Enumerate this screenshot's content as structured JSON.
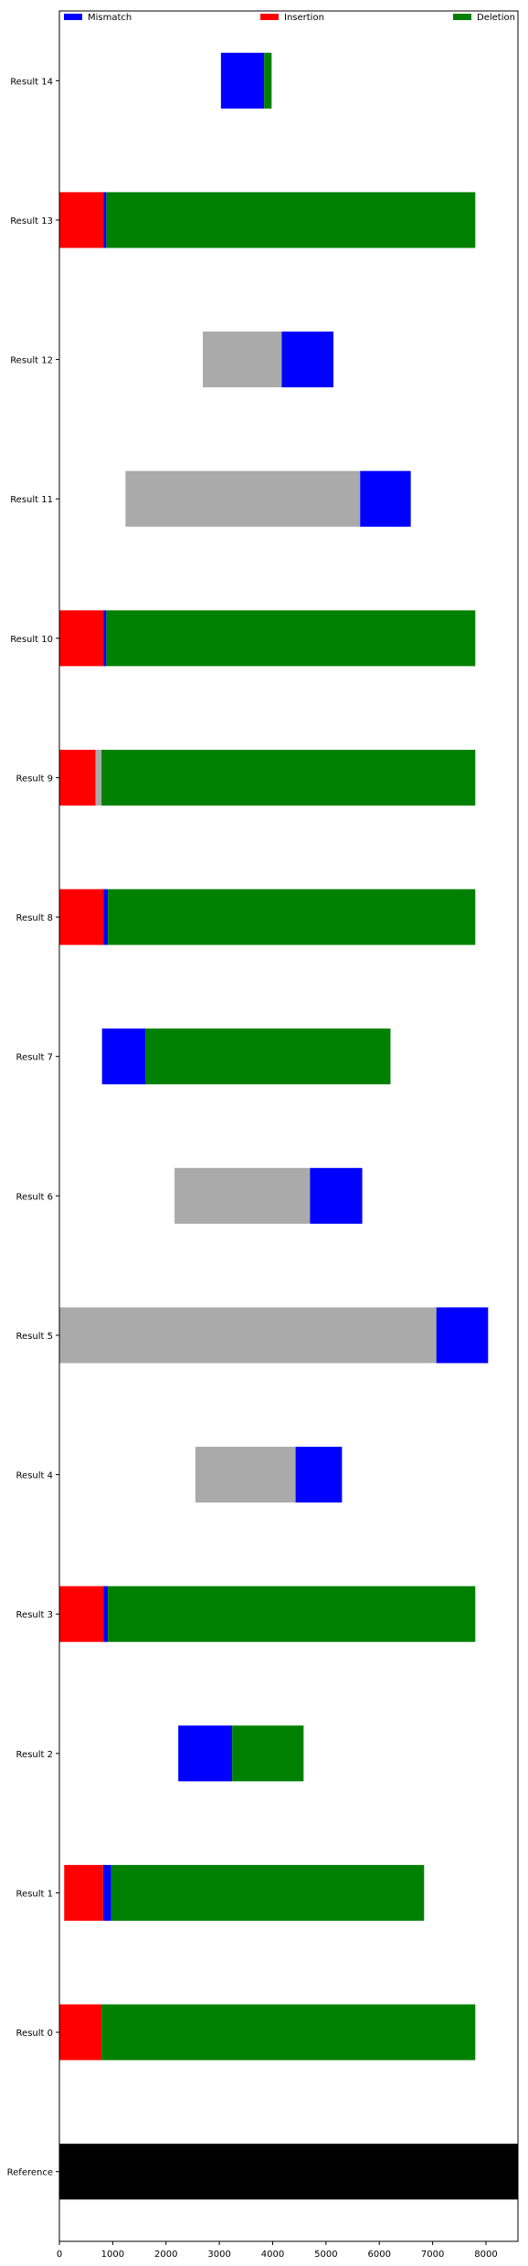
{
  "chart_data": {
    "type": "bar",
    "orientation": "horizontal-stacked",
    "title": "",
    "xlabel": "",
    "ylabel": "",
    "xlim": [
      0,
      8600
    ],
    "xticks": [
      0,
      1000,
      2000,
      3000,
      4000,
      5000,
      6000,
      7000,
      8000
    ],
    "grid": false,
    "legend": {
      "placement": "top",
      "entries": [
        {
          "label": "Mismatch",
          "color": "#0000ff"
        },
        {
          "label": "Insertion",
          "color": "#ff0000"
        },
        {
          "label": "Deletion",
          "color": "#008000"
        }
      ]
    },
    "colors": {
      "mismatch": "#0000ff",
      "insertion": "#ff0000",
      "deletion": "#008000",
      "match": "#aaaaaa",
      "reference": "#000000"
    },
    "categories": [
      "Result 14",
      "Result 13",
      "Result 12",
      "Result 11",
      "Result 10",
      "Result 9",
      "Result 8",
      "Result 7",
      "Result 6",
      "Result 5",
      "Result 4",
      "Result 3",
      "Result 2",
      "Result 1",
      "Result 0",
      "Reference"
    ],
    "rows": [
      {
        "label": "Result 14",
        "segments": [
          {
            "kind": "mismatch",
            "start": 3030,
            "end": 3840
          },
          {
            "kind": "deletion",
            "start": 3840,
            "end": 3980
          }
        ]
      },
      {
        "label": "Result 13",
        "segments": [
          {
            "kind": "insertion",
            "start": 0,
            "end": 830
          },
          {
            "kind": "mismatch",
            "start": 830,
            "end": 880
          },
          {
            "kind": "deletion",
            "start": 880,
            "end": 7800
          }
        ]
      },
      {
        "label": "Result 12",
        "segments": [
          {
            "kind": "match",
            "start": 2690,
            "end": 4170
          },
          {
            "kind": "mismatch",
            "start": 4170,
            "end": 5140
          }
        ]
      },
      {
        "label": "Result 11",
        "segments": [
          {
            "kind": "match",
            "start": 1240,
            "end": 5640
          },
          {
            "kind": "mismatch",
            "start": 5640,
            "end": 6590
          }
        ]
      },
      {
        "label": "Result 10",
        "segments": [
          {
            "kind": "insertion",
            "start": 0,
            "end": 830
          },
          {
            "kind": "mismatch",
            "start": 830,
            "end": 880
          },
          {
            "kind": "deletion",
            "start": 880,
            "end": 7800
          }
        ]
      },
      {
        "label": "Result 9",
        "segments": [
          {
            "kind": "insertion",
            "start": 0,
            "end": 680
          },
          {
            "kind": "match",
            "start": 680,
            "end": 790
          },
          {
            "kind": "deletion",
            "start": 790,
            "end": 7800
          }
        ]
      },
      {
        "label": "Result 8",
        "segments": [
          {
            "kind": "insertion",
            "start": 0,
            "end": 830
          },
          {
            "kind": "mismatch",
            "start": 830,
            "end": 910
          },
          {
            "kind": "deletion",
            "start": 910,
            "end": 7800
          }
        ]
      },
      {
        "label": "Result 7",
        "segments": [
          {
            "kind": "mismatch",
            "start": 800,
            "end": 1610
          },
          {
            "kind": "deletion",
            "start": 1610,
            "end": 6210
          }
        ]
      },
      {
        "label": "Result 6",
        "segments": [
          {
            "kind": "match",
            "start": 2160,
            "end": 4700
          },
          {
            "kind": "mismatch",
            "start": 4700,
            "end": 5680
          }
        ]
      },
      {
        "label": "Result 5",
        "segments": [
          {
            "kind": "match",
            "start": 0,
            "end": 7070
          },
          {
            "kind": "mismatch",
            "start": 7070,
            "end": 8040
          }
        ]
      },
      {
        "label": "Result 4",
        "segments": [
          {
            "kind": "match",
            "start": 2550,
            "end": 4430
          },
          {
            "kind": "mismatch",
            "start": 4430,
            "end": 5300
          }
        ]
      },
      {
        "label": "Result 3",
        "segments": [
          {
            "kind": "insertion",
            "start": 0,
            "end": 830
          },
          {
            "kind": "mismatch",
            "start": 830,
            "end": 910
          },
          {
            "kind": "deletion",
            "start": 910,
            "end": 7800
          }
        ]
      },
      {
        "label": "Result 2",
        "segments": [
          {
            "kind": "mismatch",
            "start": 2230,
            "end": 3240
          },
          {
            "kind": "deletion",
            "start": 3240,
            "end": 4580
          }
        ]
      },
      {
        "label": "Result 1",
        "segments": [
          {
            "kind": "insertion",
            "start": 90,
            "end": 820
          },
          {
            "kind": "mismatch",
            "start": 820,
            "end": 970
          },
          {
            "kind": "deletion",
            "start": 970,
            "end": 6840
          }
        ]
      },
      {
        "label": "Result 0",
        "segments": [
          {
            "kind": "insertion",
            "start": 0,
            "end": 790
          },
          {
            "kind": "deletion",
            "start": 790,
            "end": 7800
          }
        ]
      },
      {
        "label": "Reference",
        "segments": [
          {
            "kind": "reference",
            "start": 0,
            "end": 8600
          }
        ]
      }
    ]
  }
}
